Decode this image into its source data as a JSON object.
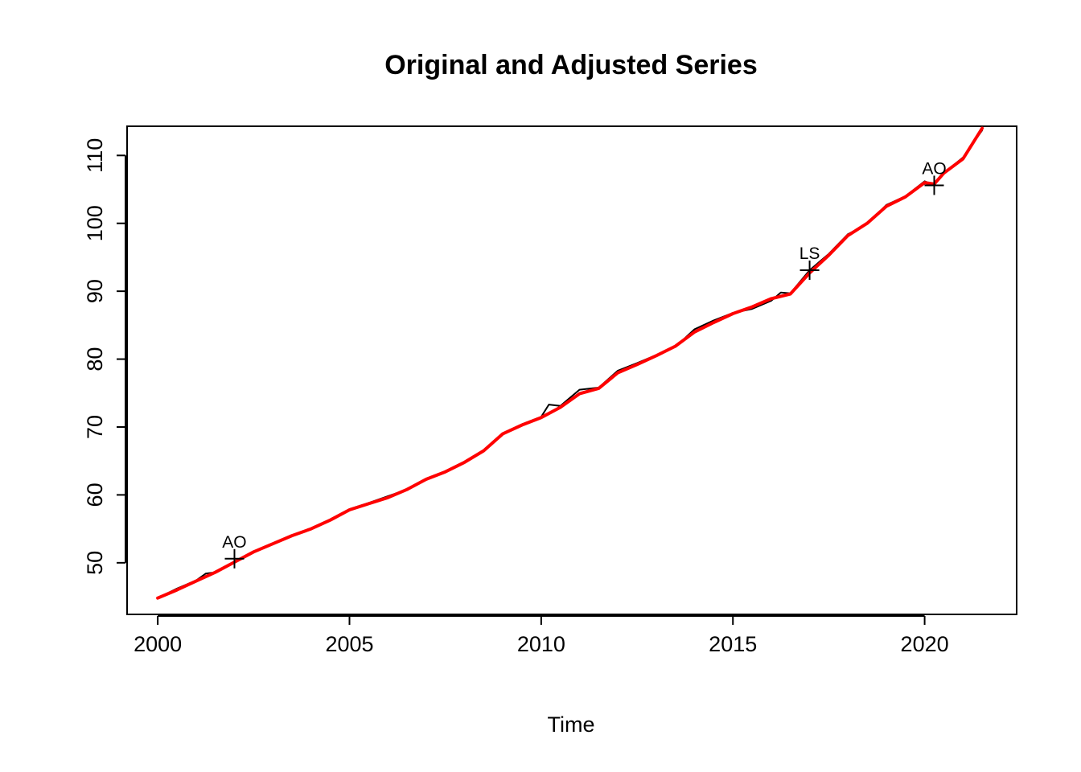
{
  "chart_data": {
    "type": "line",
    "title": "Original and Adjusted Series",
    "xlabel": "Time",
    "ylabel": "",
    "xlim": [
      1999.2,
      2022.4
    ],
    "ylim": [
      42.4,
      114.3
    ],
    "x_ticks": [
      2000,
      2005,
      2010,
      2015,
      2020
    ],
    "y_ticks": [
      50,
      60,
      70,
      80,
      90,
      100,
      110
    ],
    "grid": false,
    "series": [
      {
        "color": "#000000",
        "line_width": 2,
        "points": [
          [
            2000.0,
            44.8
          ],
          [
            2000.5,
            46.2
          ],
          [
            2001.0,
            47.4
          ],
          [
            2001.25,
            48.4
          ],
          [
            2001.5,
            48.6
          ],
          [
            2002.0,
            50.2
          ],
          [
            2002.5,
            51.7
          ],
          [
            2003.0,
            52.9
          ],
          [
            2003.5,
            54.0
          ],
          [
            2004.0,
            55.1
          ],
          [
            2004.5,
            56.4
          ],
          [
            2005.0,
            57.9
          ],
          [
            2005.5,
            58.8
          ],
          [
            2006.0,
            59.8
          ],
          [
            2006.5,
            60.8
          ],
          [
            2007.0,
            62.4
          ],
          [
            2007.5,
            63.5
          ],
          [
            2008.0,
            64.9
          ],
          [
            2008.5,
            66.6
          ],
          [
            2009.0,
            69.1
          ],
          [
            2009.5,
            70.4
          ],
          [
            2010.0,
            71.5
          ],
          [
            2010.2,
            73.3
          ],
          [
            2010.5,
            73.1
          ],
          [
            2011.0,
            75.5
          ],
          [
            2011.5,
            75.8
          ],
          [
            2012.0,
            78.3
          ],
          [
            2012.5,
            79.4
          ],
          [
            2013.0,
            80.6
          ],
          [
            2013.5,
            81.8
          ],
          [
            2014.0,
            84.4
          ],
          [
            2014.5,
            85.7
          ],
          [
            2015.0,
            86.8
          ],
          [
            2015.5,
            87.4
          ],
          [
            2016.0,
            88.6
          ],
          [
            2016.25,
            89.8
          ],
          [
            2016.5,
            89.7
          ],
          [
            2017.0,
            93.1
          ],
          [
            2017.5,
            95.5
          ],
          [
            2018.0,
            98.4
          ],
          [
            2018.5,
            99.9
          ],
          [
            2019.0,
            102.7
          ],
          [
            2019.5,
            104.0
          ],
          [
            2020.0,
            106.2
          ],
          [
            2020.25,
            105.6
          ],
          [
            2020.5,
            107.4
          ],
          [
            2021.0,
            109.7
          ],
          [
            2021.5,
            113.7
          ]
        ]
      },
      {
        "color": "#ff0000",
        "line_width": 4,
        "points": [
          [
            2000.0,
            44.8
          ],
          [
            2000.5,
            46.0
          ],
          [
            2001.0,
            47.3
          ],
          [
            2001.5,
            48.6
          ],
          [
            2002.0,
            50.1
          ],
          [
            2002.5,
            51.6
          ],
          [
            2003.0,
            52.8
          ],
          [
            2003.5,
            54.0
          ],
          [
            2004.0,
            55.0
          ],
          [
            2004.5,
            56.3
          ],
          [
            2005.0,
            57.8
          ],
          [
            2005.5,
            58.7
          ],
          [
            2006.0,
            59.6
          ],
          [
            2006.5,
            60.8
          ],
          [
            2007.0,
            62.3
          ],
          [
            2007.5,
            63.4
          ],
          [
            2008.0,
            64.8
          ],
          [
            2008.5,
            66.5
          ],
          [
            2009.0,
            69.0
          ],
          [
            2009.5,
            70.3
          ],
          [
            2010.0,
            71.4
          ],
          [
            2010.5,
            72.9
          ],
          [
            2011.0,
            74.9
          ],
          [
            2011.5,
            75.7
          ],
          [
            2012.0,
            78.0
          ],
          [
            2012.5,
            79.2
          ],
          [
            2013.0,
            80.5
          ],
          [
            2013.5,
            81.9
          ],
          [
            2014.0,
            84.0
          ],
          [
            2014.5,
            85.4
          ],
          [
            2015.0,
            86.7
          ],
          [
            2015.5,
            87.7
          ],
          [
            2016.0,
            88.9
          ],
          [
            2016.5,
            89.6
          ],
          [
            2017.0,
            92.7
          ],
          [
            2017.5,
            95.3
          ],
          [
            2018.0,
            98.2
          ],
          [
            2018.5,
            100.0
          ],
          [
            2019.0,
            102.5
          ],
          [
            2019.5,
            103.9
          ],
          [
            2020.0,
            106.0
          ],
          [
            2020.25,
            105.8
          ],
          [
            2020.5,
            107.4
          ],
          [
            2021.0,
            109.5
          ],
          [
            2021.5,
            114.0
          ]
        ]
      }
    ],
    "annotations": [
      {
        "label": "AO",
        "x": 2002.0,
        "y": 50.6
      },
      {
        "label": "LS",
        "x": 2017.0,
        "y": 93.1
      },
      {
        "label": "AO",
        "x": 2020.25,
        "y": 105.6
      }
    ]
  }
}
